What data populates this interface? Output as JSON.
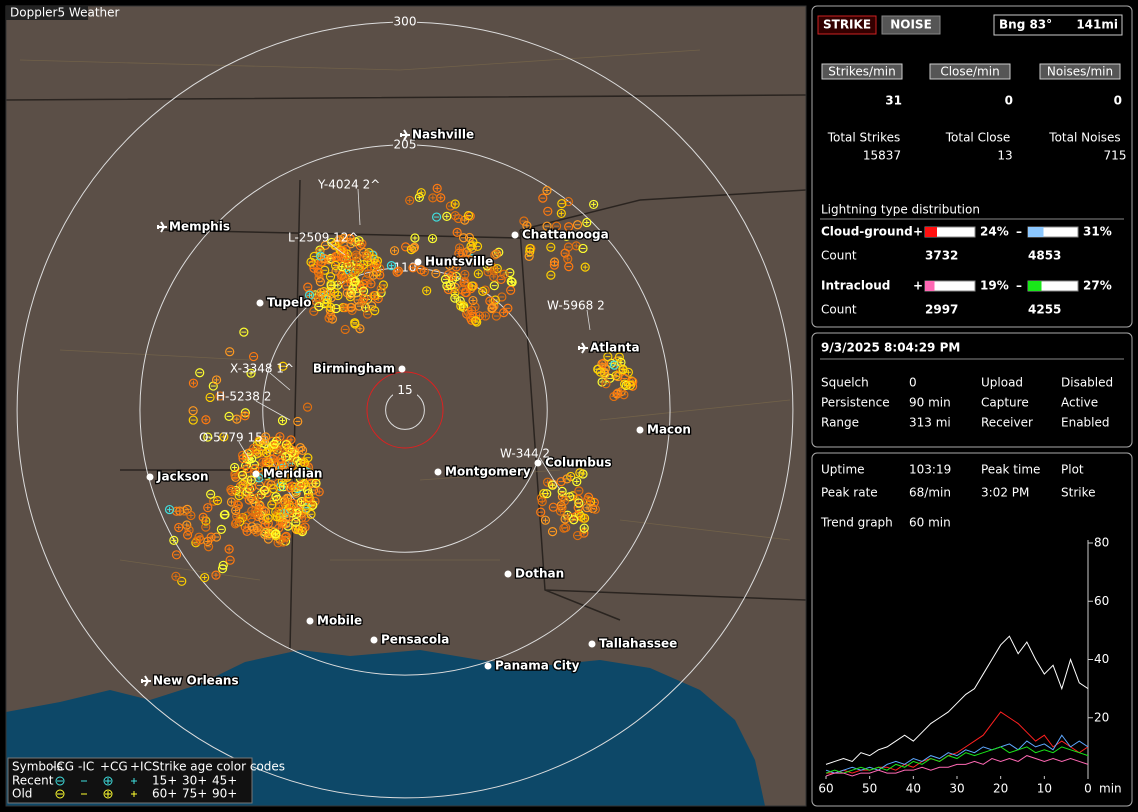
{
  "map": {
    "app_label": "Doppler5 Weather",
    "range_rings": [
      15,
      110,
      205,
      300
    ],
    "cities": [
      "Nashville",
      "Memphis",
      "Chattanooga",
      "Huntsville",
      "Tupelo",
      "Birmingham",
      "Atlanta",
      "Macon",
      "Jackson",
      "Meridian",
      "Montgomery",
      "Columbus",
      "Dothan",
      "Mobile",
      "Pensacola",
      "Tallahassee",
      "Panama City",
      "New Orleans"
    ],
    "tracks": [
      "Y-4024 2^",
      "L-2509 12^",
      "W-5968 2",
      "X-3348 1^",
      "H-5238 2",
      "O-5779 15",
      "W-344 2"
    ],
    "legend": {
      "header": [
        "Symbols",
        "-CG",
        "-IC",
        "+CG",
        "+IC",
        "Strike age color codes"
      ],
      "recent_label": "Recent",
      "old_label": "Old",
      "recent_ages": [
        "15+",
        "30+",
        "45+"
      ],
      "old_ages": [
        "60+",
        "75+",
        "90+"
      ]
    }
  },
  "status": {
    "strike": "STRIKE",
    "noise": "NOISE",
    "bearing": "Bng 83°",
    "distance": "141mi"
  },
  "rates": {
    "headers": [
      "Strikes/min",
      "Close/min",
      "Noises/min"
    ],
    "values": [
      "31",
      "0",
      "0"
    ],
    "totals": [
      {
        "label": "Total Strikes",
        "value": "15837"
      },
      {
        "label": "Total Close",
        "value": "13"
      },
      {
        "label": "Total Noises",
        "value": "715"
      }
    ]
  },
  "distribution": {
    "title": "Lightning type distribution",
    "count_label": "Count",
    "rows": [
      {
        "label": "Cloud-ground",
        "positive": {
          "sign": "+",
          "percent": 24,
          "percent_label": "24%",
          "count": "3732",
          "color": "#ff1010"
        },
        "negative": {
          "sign": "–",
          "percent": 31,
          "percent_label": "31%",
          "count": "4853",
          "color": "#8cc8ff"
        }
      },
      {
        "label": "Intracloud",
        "positive": {
          "sign": "+",
          "percent": 19,
          "percent_label": "19%",
          "count": "2997",
          "color": "#ff69b4"
        },
        "negative": {
          "sign": "–",
          "percent": 27,
          "percent_label": "27%",
          "count": "4255",
          "color": "#19e619"
        }
      }
    ]
  },
  "clock": "9/3/2025 8:04:29 PM",
  "settings": [
    [
      "Squelch",
      "0",
      "Upload",
      "Disabled"
    ],
    [
      "Persistence",
      "90 min",
      "Capture",
      "Active"
    ],
    [
      "Range",
      "313 mi",
      "Receiver",
      "Enabled"
    ]
  ],
  "stats": [
    [
      "Uptime",
      "103:19",
      "Peak time",
      "Plot"
    ],
    [
      "Peak rate",
      "68/min",
      "3:02 PM",
      "Strike"
    ]
  ],
  "trend": {
    "label": "Trend graph",
    "span": "60 min"
  },
  "chart_data": {
    "type": "line",
    "x_label": "min",
    "x": [
      60,
      58,
      56,
      54,
      52,
      50,
      48,
      46,
      44,
      42,
      40,
      38,
      36,
      34,
      32,
      30,
      28,
      26,
      24,
      22,
      20,
      18,
      16,
      14,
      12,
      10,
      8,
      6,
      4,
      2,
      0
    ],
    "xlim": [
      60,
      0
    ],
    "xticks": [
      60,
      50,
      40,
      30,
      20,
      10,
      0
    ],
    "ylim": [
      0,
      80
    ],
    "yticks": [
      20,
      40,
      60,
      80
    ],
    "series": [
      {
        "color": "#ffffff",
        "values": [
          4,
          5,
          6,
          5,
          8,
          7,
          9,
          10,
          12,
          14,
          12,
          15,
          18,
          20,
          22,
          25,
          28,
          30,
          35,
          40,
          45,
          48,
          42,
          46,
          40,
          35,
          38,
          30,
          40,
          32,
          30
        ]
      },
      {
        "color": "#ff2020",
        "values": [
          1,
          1,
          2,
          1,
          2,
          2,
          3,
          3,
          2,
          4,
          3,
          5,
          6,
          5,
          7,
          8,
          10,
          12,
          14,
          18,
          22,
          20,
          18,
          15,
          12,
          14,
          10,
          12,
          10,
          8,
          10
        ]
      },
      {
        "color": "#5fa8ff",
        "values": [
          2,
          1,
          2,
          3,
          2,
          3,
          2,
          4,
          5,
          4,
          6,
          5,
          7,
          6,
          8,
          7,
          9,
          8,
          10,
          9,
          10,
          11,
          9,
          12,
          10,
          11,
          9,
          14,
          10,
          12,
          10
        ]
      },
      {
        "color": "#19e619",
        "values": [
          1,
          2,
          1,
          2,
          3,
          2,
          3,
          2,
          4,
          3,
          5,
          4,
          6,
          5,
          7,
          6,
          8,
          7,
          8,
          9,
          10,
          8,
          9,
          10,
          8,
          9,
          8,
          10,
          9,
          8,
          7
        ]
      },
      {
        "color": "#ff69b4",
        "values": [
          0,
          1,
          1,
          0,
          1,
          1,
          2,
          1,
          1,
          2,
          2,
          3,
          2,
          3,
          3,
          4,
          4,
          5,
          4,
          6,
          5,
          6,
          5,
          7,
          6,
          5,
          6,
          5,
          6,
          5,
          4
        ]
      }
    ]
  }
}
